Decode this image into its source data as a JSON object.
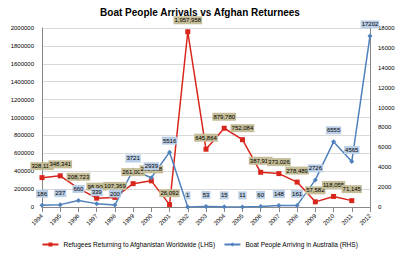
{
  "chart_data": {
    "type": "line",
    "title": "Boat People Arrivals vs Afghan Returnees",
    "categories": [
      "1994",
      "1995",
      "1996",
      "1997",
      "1998",
      "1999",
      "2000",
      "2001",
      "2002",
      "2003",
      "2004",
      "2005",
      "2006",
      "2007",
      "2008",
      "2009",
      "2010",
      "2011",
      "2012"
    ],
    "ylim": [
      0,
      2000000
    ],
    "yticks": [
      0,
      200000,
      400000,
      600000,
      800000,
      1000000,
      1200000,
      1400000,
      1600000,
      1800000,
      2000000
    ],
    "y2lim": [
      0,
      18000
    ],
    "y2ticks": [
      0,
      2000,
      4000,
      6000,
      8000,
      10000,
      12000,
      14000,
      16000,
      18000
    ],
    "grid": true,
    "legend": "bottom",
    "data_labels": true,
    "series": [
      {
        "name": "Refugees Returning to Afghanistan Worldwide (LHS)",
        "color": "#d9261c",
        "marker": "square",
        "axis": "y",
        "values": [
          328117,
          348341,
          208723,
          98900,
          107369,
          261001,
          292258,
          26092,
          1957958,
          645864,
          879780,
          752084,
          387917,
          373026,
          278489,
          57582,
          118055,
          71145,
          null
        ],
        "value_labels": [
          "328,117",
          "348,341",
          "208,723",
          "98,900",
          "107,369",
          "261,001",
          "292,258",
          "26,092",
          "1,957,958",
          "645,864",
          "879,780",
          "752,084",
          "387,917",
          "373,026",
          "278,489",
          "57,582",
          "118,055",
          "71,145",
          null
        ]
      },
      {
        "name": "Boat People Arriving in Australia (RHS)",
        "color": "#4f81bd",
        "marker": "diamond",
        "axis": "y2",
        "values": [
          186,
          237,
          660,
          339,
          200,
          3721,
          2939,
          5516,
          1,
          53,
          15,
          11,
          60,
          148,
          161,
          2726,
          6555,
          4565,
          17202
        ]
      }
    ]
  }
}
